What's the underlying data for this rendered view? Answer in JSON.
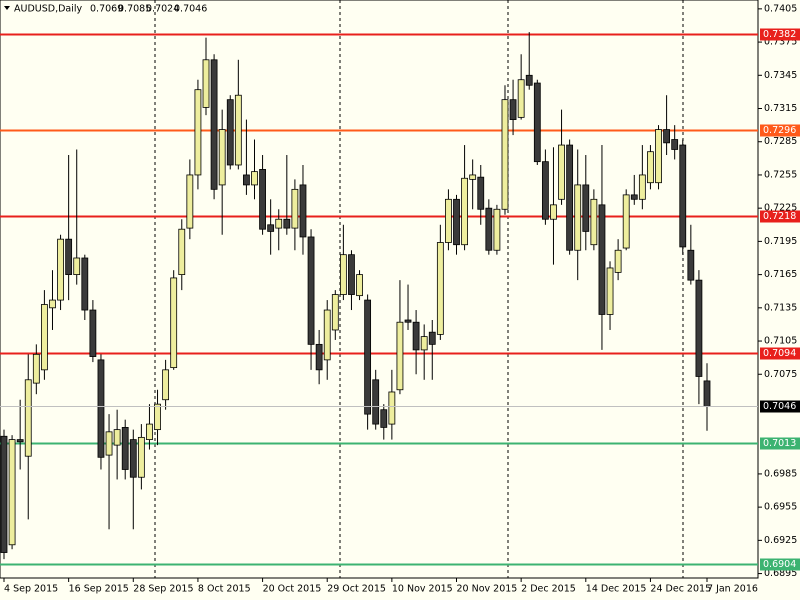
{
  "chart_data": {
    "type": "candlestick",
    "title": "AUDUSD,Daily",
    "categories": [
      "4 Sep 2015",
      null,
      null,
      null,
      null,
      null,
      null,
      null,
      "16 Sep 2015",
      null,
      null,
      null,
      null,
      null,
      null,
      null,
      "28 Sep 2015",
      null,
      null,
      null,
      null,
      null,
      null,
      null,
      "8 Oct 2015",
      null,
      null,
      null,
      null,
      null,
      null,
      null,
      "20 Oct 2015",
      null,
      null,
      null,
      null,
      null,
      null,
      null,
      "29 Oct 2015",
      null,
      null,
      null,
      null,
      null,
      null,
      null,
      "10 Nov 2015",
      null,
      null,
      null,
      null,
      null,
      null,
      null,
      "20 Nov 2015",
      null,
      null,
      null,
      null,
      null,
      null,
      null,
      "2 Dec 2015",
      null,
      null,
      null,
      null,
      null,
      null,
      null,
      "14 Dec 2015",
      null,
      null,
      null,
      null,
      null,
      null,
      null,
      "24 Dec 2015",
      null,
      null,
      null,
      null,
      null,
      null,
      "7 Jan 2016"
    ],
    "open": [
      0.7019,
      0.6921,
      0.7016,
      0.7001,
      0.7067,
      0.7079,
      0.7135,
      0.7142,
      0.7197,
      0.7165,
      0.718,
      0.7133,
      0.7088,
      0.7002,
      0.7011,
      0.7027,
      0.7016,
      0.6982,
      0.7016,
      0.7025,
      0.7052,
      0.7081,
      0.7165,
      0.7207,
      0.7255,
      0.7316,
      0.7359,
      0.7246,
      0.7323,
      0.7264,
      0.7255,
      0.7246,
      0.726,
      0.721,
      0.7207,
      0.7215,
      0.7207,
      0.7246,
      0.7199,
      0.7102,
      0.7088,
      0.7115,
      0.7147,
      0.7183,
      0.7146,
      0.7142,
      0.707,
      0.7043,
      0.703,
      0.7061,
      0.7124,
      0.7122,
      0.7097,
      0.7113,
      0.7111,
      0.7194,
      0.7233,
      0.7192,
      0.7251,
      0.7253,
      0.7225,
      0.7187,
      0.7224,
      0.7323,
      0.7307,
      0.7345,
      0.7338,
      0.7267,
      0.7215,
      0.7233,
      0.7282,
      0.7187,
      0.7246,
      0.7192,
      0.7228,
      0.7129,
      0.7167,
      0.7189,
      0.7237,
      0.7233,
      0.7248,
      0.7248,
      0.7296,
      0.7287,
      0.7282,
      0.7187,
      0.716,
      0.7069
    ],
    "high": [
      0.7025,
      0.702,
      0.7052,
      0.7093,
      0.7102,
      0.7151,
      0.7169,
      0.7201,
      0.7273,
      0.7278,
      0.7183,
      0.7142,
      0.7093,
      0.7039,
      0.7043,
      0.7034,
      0.7025,
      0.703,
      0.7048,
      0.7061,
      0.7088,
      0.7169,
      0.7215,
      0.7269,
      0.7341,
      0.7379,
      0.7364,
      0.7314,
      0.7327,
      0.7359,
      0.7305,
      0.7287,
      0.7273,
      0.7233,
      0.7224,
      0.7273,
      0.7251,
      0.7264,
      0.7206,
      0.7115,
      0.7142,
      0.7151,
      0.721,
      0.7187,
      0.7169,
      0.7147,
      0.7079,
      0.7048,
      0.7079,
      0.716,
      0.7156,
      0.7133,
      0.712,
      0.7124,
      0.721,
      0.7242,
      0.7237,
      0.7282,
      0.7269,
      0.7264,
      0.7233,
      0.7228,
      0.7336,
      0.7341,
      0.7364,
      0.7384,
      0.7341,
      0.7278,
      0.728,
      0.7314,
      0.7287,
      0.7278,
      0.7273,
      0.7242,
      0.7282,
      0.7177,
      0.7197,
      0.7242,
      0.7255,
      0.7282,
      0.7282,
      0.73,
      0.7327,
      0.73,
      0.7287,
      0.721,
      0.7169,
      0.7085
    ],
    "low": [
      0.6908,
      0.6917,
      0.6989,
      0.6944,
      0.7057,
      0.707,
      0.7115,
      0.7133,
      0.7142,
      0.7156,
      0.7124,
      0.7086,
      0.6989,
      0.6935,
      0.698,
      0.698,
      0.6935,
      0.6971,
      0.7007,
      0.7011,
      0.7043,
      0.7079,
      0.7151,
      0.7197,
      0.7242,
      0.7309,
      0.7233,
      0.7201,
      0.726,
      0.726,
      0.7237,
      0.7233,
      0.7201,
      0.7183,
      0.7187,
      0.7201,
      0.7187,
      0.7183,
      0.7079,
      0.7066,
      0.707,
      0.7106,
      0.7142,
      0.7133,
      0.7142,
      0.7025,
      0.7025,
      0.7016,
      0.7016,
      0.7057,
      0.7115,
      0.7075,
      0.707,
      0.707,
      0.7106,
      0.7187,
      0.7183,
      0.7187,
      0.7224,
      0.721,
      0.7183,
      0.7183,
      0.7219,
      0.7291,
      0.7305,
      0.7332,
      0.7264,
      0.721,
      0.7174,
      0.7228,
      0.7183,
      0.716,
      0.7187,
      0.7187,
      0.7097,
      0.7115,
      0.716,
      0.7187,
      0.7228,
      0.7224,
      0.7242,
      0.7242,
      0.7273,
      0.7269,
      0.7183,
      0.7156,
      0.7048,
      0.7024
    ],
    "close": [
      0.6914,
      0.7016,
      0.7014,
      0.707,
      0.7093,
      0.7138,
      0.7142,
      0.7197,
      0.7165,
      0.718,
      0.7133,
      0.7091,
      0.7,
      0.7023,
      0.7025,
      0.6989,
      0.6982,
      0.7018,
      0.703,
      0.7048,
      0.7079,
      0.7162,
      0.7206,
      0.7255,
      0.7332,
      0.7359,
      0.7242,
      0.7296,
      0.7264,
      0.7327,
      0.7246,
      0.7258,
      0.7206,
      0.7204,
      0.7215,
      0.7207,
      0.7242,
      0.7199,
      0.7102,
      0.7079,
      0.7133,
      0.7147,
      0.7183,
      0.7147,
      0.7165,
      0.7039,
      0.703,
      0.7027,
      0.7059,
      0.7122,
      0.7122,
      0.7097,
      0.7109,
      0.7102,
      0.7194,
      0.7233,
      0.7192,
      0.7252,
      0.7255,
      0.7224,
      0.7187,
      0.7224,
      0.7323,
      0.7305,
      0.7341,
      0.7336,
      0.7267,
      0.7215,
      0.7228,
      0.7282,
      0.7187,
      0.7246,
      0.7204,
      0.7233,
      0.7129,
      0.7171,
      0.7187,
      0.7237,
      0.7233,
      0.7255,
      0.7276,
      0.7296,
      0.7284,
      0.7278,
      0.719,
      0.716,
      0.7073,
      0.7046
    ],
    "up_color": "#eeee9e",
    "down_color": "#3a3a3a",
    "ylim": [
      0.6891,
      0.7413
    ],
    "yticks": [
      0.7405,
      0.7375,
      0.7345,
      0.7315,
      0.7285,
      0.7255,
      0.7225,
      0.7195,
      0.7165,
      0.7135,
      0.7105,
      0.7075,
      0.6985,
      0.6955,
      0.6925,
      0.6895
    ],
    "levels": [
      {
        "value": 0.7382,
        "color": "#e8201c"
      },
      {
        "value": 0.7296,
        "color": "#ff5a1a"
      },
      {
        "value": 0.7218,
        "color": "#e8201c"
      },
      {
        "value": 0.7094,
        "color": "#e8201c"
      },
      {
        "value": 0.7013,
        "color": "#3cb371"
      },
      {
        "value": 0.6904,
        "color": "#3cb371"
      }
    ]
  }
}
